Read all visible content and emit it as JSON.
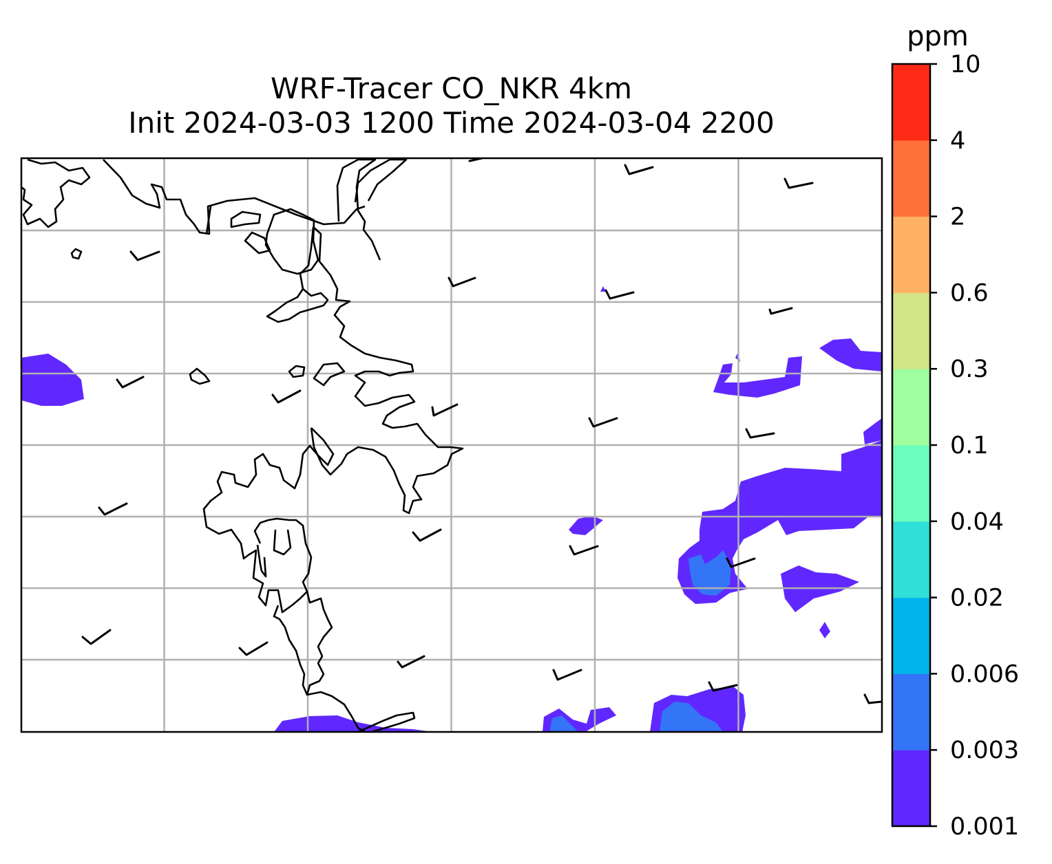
{
  "title": {
    "line1": "WRF-Tracer CO_NKR 4km",
    "line2": "Init 2024-03-03 1200 Time 2024-03-04 2200"
  },
  "colorbar": {
    "units": "ppm",
    "levels": [
      "0.001",
      "0.003",
      "0.006",
      "0.02",
      "0.04",
      "0.1",
      "0.3",
      "0.6",
      "2",
      "4",
      "10"
    ],
    "colors": [
      "#6028fe",
      "#3474f6",
      "#00b5eb",
      "#30e0d8",
      "#6afdbd",
      "#9ffe9d",
      "#d2e487",
      "#ffb262",
      "#ff7139",
      "#ff2a16"
    ]
  },
  "map": {
    "frame_color": "#000000",
    "gridline_color": "#b0b0b0",
    "coastline_color": "#000000",
    "wind_barb_color": "#000000",
    "field_color_low": "#6028fe",
    "field_color_mid": "#3474f6"
  }
}
